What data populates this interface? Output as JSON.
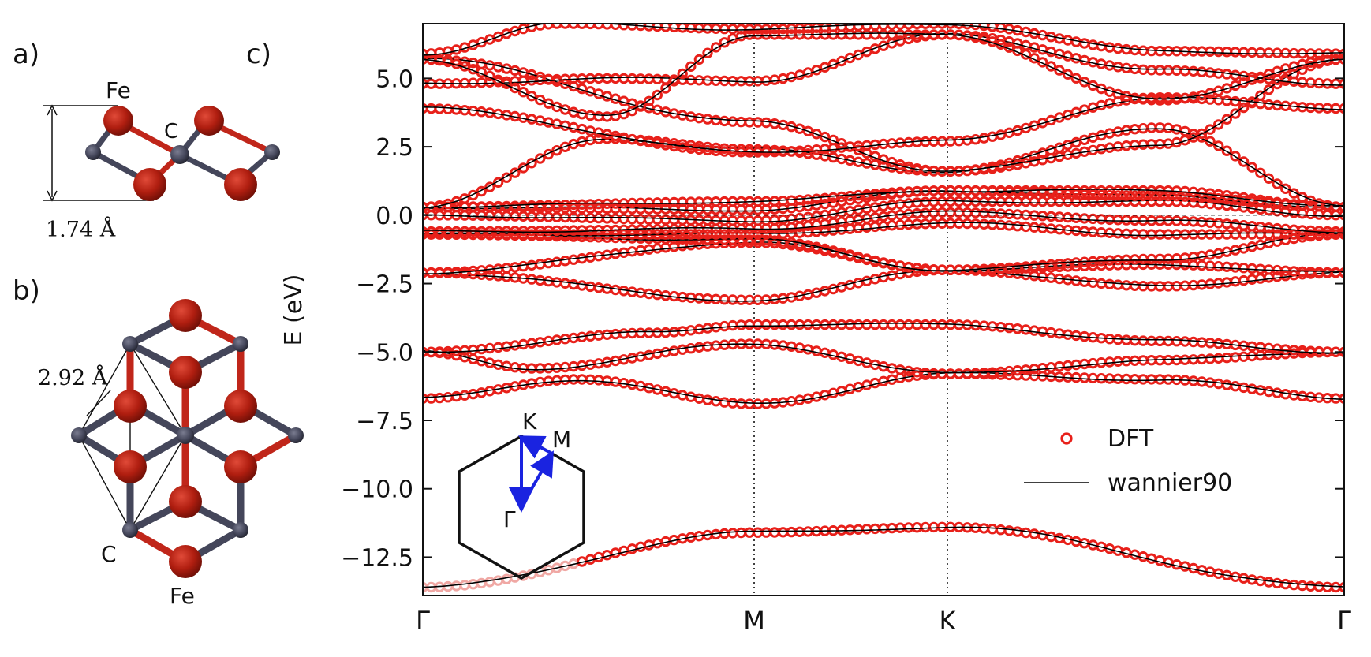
{
  "panels": {
    "a": {
      "label": "a)",
      "atom_top": "Fe",
      "atom_mid": "C",
      "height_label": "1.74 Å"
    },
    "b": {
      "label": "b)",
      "lattice_label": "2.92 Å",
      "atom_c": "C",
      "atom_fe": "Fe"
    },
    "c": {
      "label": "c)",
      "inset": {
        "labels": [
          "K",
          "M",
          "Γ"
        ]
      }
    }
  },
  "colors": {
    "dft": "#e8201a",
    "wannier": "#000000",
    "fe_atom": "#b01e10",
    "c_atom": "#44465a",
    "bond_red": "#c0261a",
    "arrow": "#1a23e0"
  },
  "chart_data": {
    "type": "line",
    "title": "",
    "xlabel": "",
    "ylabel": "E (eV)",
    "ylim": [
      -13.9,
      7.0
    ],
    "xlim": [
      0,
      1.0
    ],
    "grid": false,
    "legend_position": "center-right",
    "x_ticks": [
      {
        "label": "Γ",
        "x": 0.0
      },
      {
        "label": "M",
        "x": 0.3596
      },
      {
        "label": "K",
        "x": 0.5693
      },
      {
        "label": "Γ",
        "x": 1.0
      }
    ],
    "y_ticks": [
      "5.0",
      "2.5",
      "0.0",
      "−2.5",
      "−5.0",
      "−7.5",
      "−10.0",
      "−12.5"
    ],
    "y_tick_values": [
      5.0,
      2.5,
      0.0,
      -2.5,
      -5.0,
      -7.5,
      -10.0,
      -12.5
    ],
    "vertical_lines_at": [
      0.3596,
      0.5693
    ],
    "legend": [
      {
        "label": "DFT",
        "style": "open-circle"
      },
      {
        "label": "wannier90",
        "style": "line"
      }
    ],
    "bands": [
      {
        "x": [
          0,
          0.359,
          0.569,
          1.0
        ],
        "y": [
          -13.6,
          -11.6,
          -11.4,
          -13.6
        ]
      },
      {
        "x": [
          0,
          0.17,
          0.359,
          0.569,
          0.8,
          1.0
        ],
        "y": [
          -6.7,
          -6.0,
          -6.9,
          -5.8,
          -6.0,
          -6.7
        ]
      },
      {
        "x": [
          0,
          0.12,
          0.359,
          0.569,
          0.8,
          1.0
        ],
        "y": [
          -5.0,
          -5.6,
          -4.7,
          -5.8,
          -5.3,
          -5.0
        ]
      },
      {
        "x": [
          0,
          0.25,
          0.359,
          0.569,
          0.8,
          1.0
        ],
        "y": [
          -5.0,
          -4.3,
          -4.0,
          -4.0,
          -4.6,
          -5.0
        ]
      },
      {
        "x": [
          0,
          0.359,
          0.569,
          0.8,
          1.0
        ],
        "y": [
          -2.1,
          -3.1,
          -2.0,
          -2.6,
          -2.1
        ]
      },
      {
        "x": [
          0,
          0.359,
          0.569,
          0.8,
          1.0
        ],
        "y": [
          -2.1,
          -1.0,
          -2.0,
          -1.8,
          -2.1
        ]
      },
      {
        "x": [
          0,
          0.359,
          0.569,
          0.8,
          1.0
        ],
        "y": [
          -0.7,
          -0.9,
          -2.0,
          -1.6,
          -0.7
        ]
      },
      {
        "x": [
          0,
          0.359,
          0.569,
          0.8,
          1.0
        ],
        "y": [
          -0.7,
          -0.7,
          -0.3,
          -0.7,
          -0.7
        ]
      },
      {
        "x": [
          0,
          0.359,
          0.569,
          0.8,
          1.0
        ],
        "y": [
          -0.6,
          -0.5,
          0.1,
          -0.2,
          -0.6
        ]
      },
      {
        "x": [
          0,
          0.359,
          0.569,
          0.8,
          1.0
        ],
        "y": [
          0.0,
          -0.2,
          0.5,
          0.5,
          0.0
        ]
      },
      {
        "x": [
          0,
          0.359,
          0.569,
          0.8,
          1.0
        ],
        "y": [
          0.3,
          0.2,
          0.9,
          0.7,
          0.3
        ]
      },
      {
        "x": [
          0,
          0.359,
          0.569,
          0.8,
          1.0
        ],
        "y": [
          0.3,
          0.5,
          0.9,
          0.9,
          0.3
        ]
      },
      {
        "x": [
          0,
          0.2,
          0.359,
          0.569,
          0.8,
          1.0
        ],
        "y": [
          0.3,
          2.8,
          2.4,
          1.6,
          3.2,
          0.3
        ]
      },
      {
        "x": [
          0,
          0.359,
          0.569,
          0.8,
          1.0
        ],
        "y": [
          5.7,
          3.4,
          1.6,
          2.6,
          5.7
        ]
      },
      {
        "x": [
          0,
          0.359,
          0.569,
          0.8,
          1.0
        ],
        "y": [
          3.9,
          2.3,
          2.7,
          4.3,
          3.9
        ]
      },
      {
        "x": [
          0,
          0.2,
          0.359,
          0.569,
          0.8,
          1.0
        ],
        "y": [
          4.8,
          5.0,
          4.9,
          6.6,
          5.3,
          4.8
        ]
      },
      {
        "x": [
          0,
          0.2,
          0.359,
          0.569,
          0.8,
          1.0
        ],
        "y": [
          5.7,
          3.6,
          6.6,
          6.6,
          4.2,
          5.7
        ]
      },
      {
        "x": [
          0,
          0.15,
          0.359,
          0.569,
          0.8,
          1.0
        ],
        "y": [
          5.9,
          7.0,
          6.8,
          7.0,
          6.0,
          5.9
        ]
      }
    ]
  }
}
